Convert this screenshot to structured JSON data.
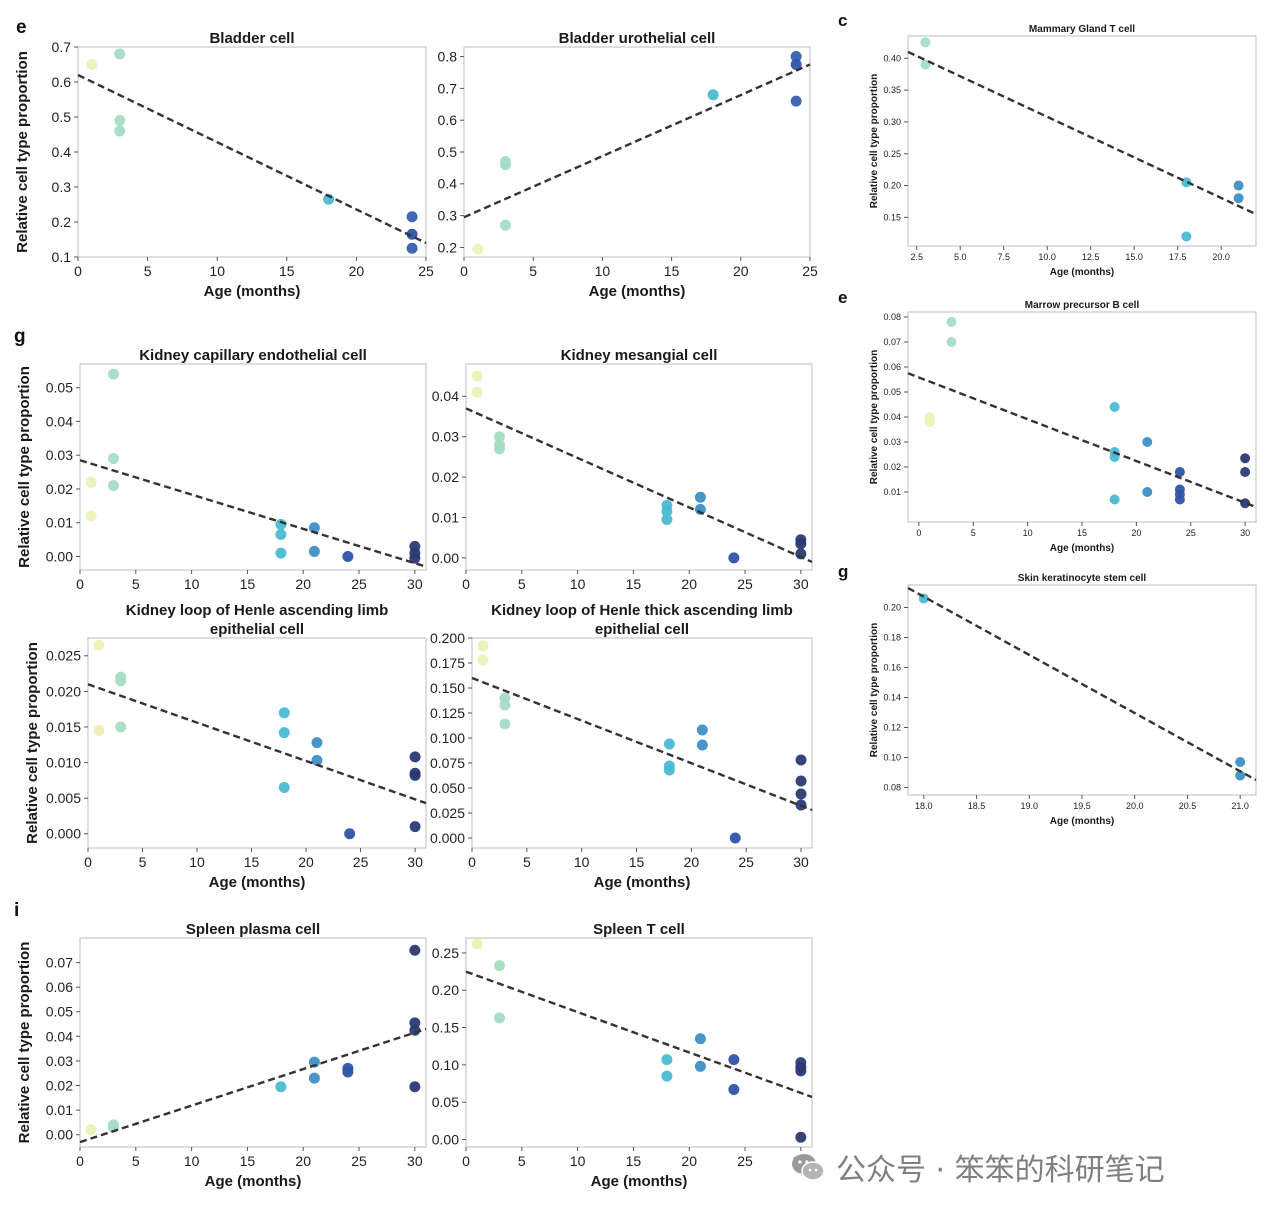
{
  "panel_letters": {
    "a": "e",
    "b": "c",
    "c": "g",
    "d": "e",
    "e": "g",
    "f": "i"
  },
  "watermark": {
    "text": "公众号 · 笨笨的科研笔记",
    "icon": "wechat-icon"
  },
  "colors": {
    "age1": "#eef0b8",
    "age3": "#a6dcc4",
    "age18": "#4bbbd3",
    "age21": "#3d8fc6",
    "age24": "#2f54a6",
    "age30": "#2b3a73",
    "trend": "#333333",
    "frame": "#c8c8c8"
  },
  "chart_data": [
    {
      "id": "bladder",
      "type": "scatter",
      "title": [
        "Bladder cell"
      ],
      "xlabel": "Age (months)",
      "ylabel": "Relative cell type proportion",
      "xlim": [
        0,
        25
      ],
      "ylim": [
        0.1,
        0.7
      ],
      "xticks": [
        0,
        5,
        10,
        15,
        20,
        25
      ],
      "yticks": [
        0.1,
        0.2,
        0.3,
        0.4,
        0.5,
        0.6,
        0.7
      ],
      "ydec": 1,
      "points": [
        [
          1,
          0.65,
          "#eef0b8"
        ],
        [
          3,
          0.68,
          "#a6dcc4"
        ],
        [
          3,
          0.49,
          "#a6dcc4"
        ],
        [
          3,
          0.46,
          "#a6dcc4"
        ],
        [
          18,
          0.265,
          "#4bbbd3"
        ],
        [
          24,
          0.215,
          "#3a5fb0"
        ],
        [
          24,
          0.165,
          "#2f54a6"
        ],
        [
          24,
          0.125,
          "#3a5fb0"
        ]
      ],
      "trend": [
        [
          0,
          0.62
        ],
        [
          25,
          0.14
        ]
      ]
    },
    {
      "id": "bladder-uro",
      "type": "scatter",
      "title": [
        "Bladder urothelial cell"
      ],
      "xlabel": "Age (months)",
      "ylabel": "",
      "xlim": [
        0,
        25
      ],
      "ylim": [
        0.17,
        0.83
      ],
      "xticks": [
        0,
        5,
        10,
        15,
        20,
        25
      ],
      "yticks": [
        0.2,
        0.3,
        0.4,
        0.5,
        0.6,
        0.7,
        0.8
      ],
      "ydec": 1,
      "points": [
        [
          1,
          0.195,
          "#eef0b8"
        ],
        [
          3,
          0.47,
          "#a6dcc4"
        ],
        [
          3,
          0.46,
          "#a6dcc4"
        ],
        [
          3,
          0.27,
          "#a6dcc4"
        ],
        [
          18,
          0.68,
          "#4bbbd3"
        ],
        [
          24,
          0.8,
          "#3a5fb0"
        ],
        [
          24,
          0.775,
          "#2f54a6"
        ],
        [
          24,
          0.66,
          "#3a5fb0"
        ]
      ],
      "trend": [
        [
          0,
          0.295
        ],
        [
          25,
          0.775
        ]
      ]
    },
    {
      "id": "mammary",
      "type": "scatter",
      "title": [
        "Mammary Gland T cell"
      ],
      "xlabel": "Age (months)",
      "ylabel": "Relative cell type proportion",
      "xlim": [
        2,
        22
      ],
      "ylim": [
        0.105,
        0.435
      ],
      "xticks": [
        2.5,
        5.0,
        7.5,
        10.0,
        12.5,
        15.0,
        17.5,
        20.0
      ],
      "yticks": [
        0.15,
        0.2,
        0.25,
        0.3,
        0.35,
        0.4
      ],
      "ydec": 2,
      "xdec": 1,
      "points": [
        [
          3,
          0.425,
          "#a6dcc4"
        ],
        [
          3,
          0.39,
          "#a6dcc4"
        ],
        [
          18,
          0.205,
          "#4bbbd3"
        ],
        [
          18,
          0.12,
          "#4bbbd3"
        ],
        [
          21,
          0.2,
          "#3d8fc6"
        ],
        [
          21,
          0.18,
          "#3d8fc6"
        ]
      ],
      "trend": [
        [
          2,
          0.41
        ],
        [
          22,
          0.155
        ]
      ]
    },
    {
      "id": "kidney-cap",
      "type": "scatter",
      "title": [
        "Kidney capillary endothelial cell"
      ],
      "xlabel": "",
      "ylabel": "Relative cell type proportion",
      "xlim": [
        0,
        31
      ],
      "ylim": [
        -0.004,
        0.057
      ],
      "xticks": [
        0,
        5,
        10,
        15,
        20,
        25,
        30
      ],
      "yticks": [
        0,
        0.01,
        0.02,
        0.03,
        0.04,
        0.05
      ],
      "ydec": 2,
      "points": [
        [
          1,
          0.022,
          "#eef0b8"
        ],
        [
          1,
          0.012,
          "#eef0b8"
        ],
        [
          3,
          0.054,
          "#a6dcc4"
        ],
        [
          3,
          0.029,
          "#a6dcc4"
        ],
        [
          3,
          0.021,
          "#a6dcc4"
        ],
        [
          18,
          0.0095,
          "#4bbbd3"
        ],
        [
          18,
          0.0065,
          "#4bbbd3"
        ],
        [
          18,
          0.001,
          "#4bbbd3"
        ],
        [
          21,
          0.0085,
          "#3d8fc6"
        ],
        [
          21,
          0.0015,
          "#3d8fc6"
        ],
        [
          24,
          0.0,
          "#2f54a6"
        ],
        [
          30,
          0.003,
          "#2b3a73"
        ],
        [
          30,
          0.001,
          "#2b3a73"
        ],
        [
          30,
          -0.0005,
          "#2b3a73"
        ]
      ],
      "trend": [
        [
          0,
          0.0285
        ],
        [
          31,
          -0.003
        ]
      ]
    },
    {
      "id": "kidney-mes",
      "type": "scatter",
      "title": [
        "Kidney mesangial cell"
      ],
      "xlabel": "",
      "ylabel": "",
      "xlim": [
        0,
        31
      ],
      "ylim": [
        -0.003,
        0.048
      ],
      "xticks": [
        0,
        5,
        10,
        15,
        20,
        25,
        30
      ],
      "yticks": [
        0,
        0.01,
        0.02,
        0.03,
        0.04
      ],
      "ydec": 2,
      "points": [
        [
          1,
          0.045,
          "#eef0b8"
        ],
        [
          1,
          0.041,
          "#eef0b8"
        ],
        [
          3,
          0.03,
          "#a6dcc4"
        ],
        [
          3,
          0.028,
          "#a6dcc4"
        ],
        [
          3,
          0.027,
          "#a6dcc4"
        ],
        [
          18,
          0.013,
          "#4bbbd3"
        ],
        [
          18,
          0.0115,
          "#4bbbd3"
        ],
        [
          18,
          0.0095,
          "#4bbbd3"
        ],
        [
          21,
          0.015,
          "#3d8fc6"
        ],
        [
          21,
          0.012,
          "#3d8fc6"
        ],
        [
          24,
          0.0,
          "#2f54a6"
        ],
        [
          30,
          0.0045,
          "#2b3a73"
        ],
        [
          30,
          0.0035,
          "#2b3a73"
        ],
        [
          30,
          0.001,
          "#2b3a73"
        ]
      ],
      "trend": [
        [
          0,
          0.037
        ],
        [
          31,
          -0.001
        ]
      ]
    },
    {
      "id": "kidney-loop",
      "type": "scatter",
      "title": [
        "Kidney loop of Henle ascending limb",
        "epithelial cell"
      ],
      "xlabel": "Age (months)",
      "ylabel": "Relative cell type proportion",
      "xlim": [
        0,
        31
      ],
      "ylim": [
        -0.002,
        0.0275
      ],
      "xticks": [
        0,
        5,
        10,
        15,
        20,
        25,
        30
      ],
      "yticks": [
        0,
        0.005,
        0.01,
        0.015,
        0.02,
        0.025
      ],
      "ydec": 3,
      "points": [
        [
          1,
          0.0265,
          "#eef0b8"
        ],
        [
          1,
          0.0145,
          "#eef0b8"
        ],
        [
          3,
          0.022,
          "#a6dcc4"
        ],
        [
          3,
          0.0215,
          "#a6dcc4"
        ],
        [
          3,
          0.015,
          "#a6dcc4"
        ],
        [
          18,
          0.017,
          "#4bbbd3"
        ],
        [
          18,
          0.0142,
          "#4bbbd3"
        ],
        [
          18,
          0.0065,
          "#4bbbd3"
        ],
        [
          21,
          0.0128,
          "#3d8fc6"
        ],
        [
          21,
          0.0103,
          "#3d8fc6"
        ],
        [
          24,
          0.0,
          "#2f54a6"
        ],
        [
          30,
          0.0108,
          "#2b3a73"
        ],
        [
          30,
          0.0085,
          "#2b3a73"
        ],
        [
          30,
          0.0082,
          "#2b3a73"
        ],
        [
          30,
          0.001,
          "#2b3a73"
        ]
      ],
      "trend": [
        [
          0,
          0.021
        ],
        [
          31,
          0.0043
        ]
      ]
    },
    {
      "id": "kidney-thick",
      "type": "scatter",
      "title": [
        "Kidney loop of Henle thick ascending limb",
        "epithelial cell"
      ],
      "xlabel": "Age (months)",
      "ylabel": "",
      "xlim": [
        0,
        31
      ],
      "ylim": [
        -0.01,
        0.2
      ],
      "xticks": [
        0,
        5,
        10,
        15,
        20,
        25,
        30
      ],
      "yticks": [
        0,
        0.025,
        0.05,
        0.075,
        0.1,
        0.125,
        0.15,
        0.175,
        0.2
      ],
      "ydec": 3,
      "points": [
        [
          1,
          0.192,
          "#eef0b8"
        ],
        [
          1,
          0.178,
          "#eef0b8"
        ],
        [
          3,
          0.14,
          "#a6dcc4"
        ],
        [
          3,
          0.133,
          "#a6dcc4"
        ],
        [
          3,
          0.114,
          "#a6dcc4"
        ],
        [
          18,
          0.094,
          "#4bbbd3"
        ],
        [
          18,
          0.072,
          "#4bbbd3"
        ],
        [
          18,
          0.068,
          "#4bbbd3"
        ],
        [
          21,
          0.108,
          "#3d8fc6"
        ],
        [
          21,
          0.093,
          "#3d8fc6"
        ],
        [
          24,
          0.0,
          "#2f54a6"
        ],
        [
          30,
          0.078,
          "#2b3a73"
        ],
        [
          30,
          0.057,
          "#2b3a73"
        ],
        [
          30,
          0.044,
          "#2b3a73"
        ],
        [
          30,
          0.033,
          "#2b3a73"
        ]
      ],
      "trend": [
        [
          0,
          0.16
        ],
        [
          31,
          0.028
        ]
      ]
    },
    {
      "id": "marrow",
      "type": "scatter",
      "title": [
        "Marrow precursor B cell"
      ],
      "xlabel": "Age (months)",
      "ylabel": "Relative cell type proportion",
      "xlim": [
        -1,
        31
      ],
      "ylim": [
        -0.002,
        0.082
      ],
      "xticks": [
        0,
        5,
        10,
        15,
        20,
        25,
        30
      ],
      "yticks": [
        0.01,
        0.02,
        0.03,
        0.04,
        0.05,
        0.06,
        0.07,
        0.08
      ],
      "ydec": 2,
      "points": [
        [
          1,
          0.04,
          "#eef0b8"
        ],
        [
          1,
          0.038,
          "#eef0b8"
        ],
        [
          3,
          0.078,
          "#a6dcc4"
        ],
        [
          3,
          0.07,
          "#a6dcc4"
        ],
        [
          18,
          0.044,
          "#4bbbd3"
        ],
        [
          18,
          0.026,
          "#4bbbd3"
        ],
        [
          18,
          0.024,
          "#4bbbd3"
        ],
        [
          18,
          0.007,
          "#4bbbd3"
        ],
        [
          21,
          0.03,
          "#3d8fc6"
        ],
        [
          21,
          0.01,
          "#3d8fc6"
        ],
        [
          24,
          0.018,
          "#2f54a6"
        ],
        [
          24,
          0.011,
          "#2f54a6"
        ],
        [
          24,
          0.009,
          "#2f54a6"
        ],
        [
          24,
          0.007,
          "#2f54a6"
        ],
        [
          30,
          0.0235,
          "#2b3a73"
        ],
        [
          30,
          0.018,
          "#2b3a73"
        ],
        [
          30,
          0.0055,
          "#2b3a73"
        ]
      ],
      "trend": [
        [
          -1,
          0.0575
        ],
        [
          31,
          0.004
        ]
      ]
    },
    {
      "id": "skin",
      "type": "scatter",
      "title": [
        "Skin keratinocyte stem cell"
      ],
      "xlabel": "Age (months)",
      "ylabel": "Relative cell type proportion",
      "xlim": [
        17.85,
        21.15
      ],
      "ylim": [
        0.075,
        0.215
      ],
      "xticks": [
        18.0,
        18.5,
        19.0,
        19.5,
        20.0,
        20.5,
        21.0
      ],
      "yticks": [
        0.08,
        0.1,
        0.12,
        0.14,
        0.16,
        0.18,
        0.2
      ],
      "ydec": 2,
      "xdec": 1,
      "points": [
        [
          18,
          0.206,
          "#4bbbd3"
        ],
        [
          21,
          0.097,
          "#3d8fc6"
        ],
        [
          21,
          0.088,
          "#3d8fc6"
        ]
      ],
      "trend": [
        [
          17.85,
          0.213
        ],
        [
          21.15,
          0.085
        ]
      ]
    },
    {
      "id": "spleen-plasma",
      "type": "scatter",
      "title": [
        "Spleen plasma cell"
      ],
      "xlabel": "Age (months)",
      "ylabel": "Relative cell type proportion",
      "xlim": [
        0,
        31
      ],
      "ylim": [
        -0.005,
        0.08
      ],
      "xticks": [
        0,
        5,
        10,
        15,
        20,
        25,
        30
      ],
      "yticks": [
        0,
        0.01,
        0.02,
        0.03,
        0.04,
        0.05,
        0.06,
        0.07
      ],
      "ydec": 2,
      "points": [
        [
          1,
          0.002,
          "#eef0b8"
        ],
        [
          3,
          0.004,
          "#a6dcc4"
        ],
        [
          3,
          0.003,
          "#a6dcc4"
        ],
        [
          18,
          0.0195,
          "#4bbbd3"
        ],
        [
          21,
          0.0295,
          "#3d8fc6"
        ],
        [
          21,
          0.023,
          "#3d8fc6"
        ],
        [
          24,
          0.027,
          "#2f54a6"
        ],
        [
          24,
          0.0255,
          "#2f54a6"
        ],
        [
          30,
          0.075,
          "#2b3a73"
        ],
        [
          30,
          0.0455,
          "#2b3a73"
        ],
        [
          30,
          0.0425,
          "#2b3a73"
        ],
        [
          30,
          0.0195,
          "#2b3a73"
        ]
      ],
      "trend": [
        [
          0,
          -0.003
        ],
        [
          31,
          0.043
        ]
      ]
    },
    {
      "id": "spleen-t",
      "type": "scatter",
      "title": [
        "Spleen T cell"
      ],
      "xlabel": "Age (months)",
      "ylabel": "",
      "xlim": [
        0,
        31
      ],
      "ylim": [
        -0.01,
        0.27
      ],
      "xticks": [
        0,
        5,
        10,
        15,
        20,
        25,
        30
      ],
      "yticks": [
        0,
        0.05,
        0.1,
        0.15,
        0.2,
        0.25
      ],
      "ydec": 2,
      "points": [
        [
          1,
          0.262,
          "#eef0b8"
        ],
        [
          3,
          0.233,
          "#a6dcc4"
        ],
        [
          3,
          0.163,
          "#a6dcc4"
        ],
        [
          18,
          0.107,
          "#4bbbd3"
        ],
        [
          18,
          0.085,
          "#4bbbd3"
        ],
        [
          21,
          0.135,
          "#3d8fc6"
        ],
        [
          21,
          0.098,
          "#3d8fc6"
        ],
        [
          24,
          0.107,
          "#2f54a6"
        ],
        [
          24,
          0.067,
          "#2f54a6"
        ],
        [
          30,
          0.103,
          "#2b3a73"
        ],
        [
          30,
          0.097,
          "#2b3a73"
        ],
        [
          30,
          0.092,
          "#2b3a73"
        ],
        [
          30,
          0.003,
          "#2b3a73"
        ]
      ],
      "trend": [
        [
          0,
          0.225
        ],
        [
          31,
          0.057
        ]
      ]
    }
  ]
}
